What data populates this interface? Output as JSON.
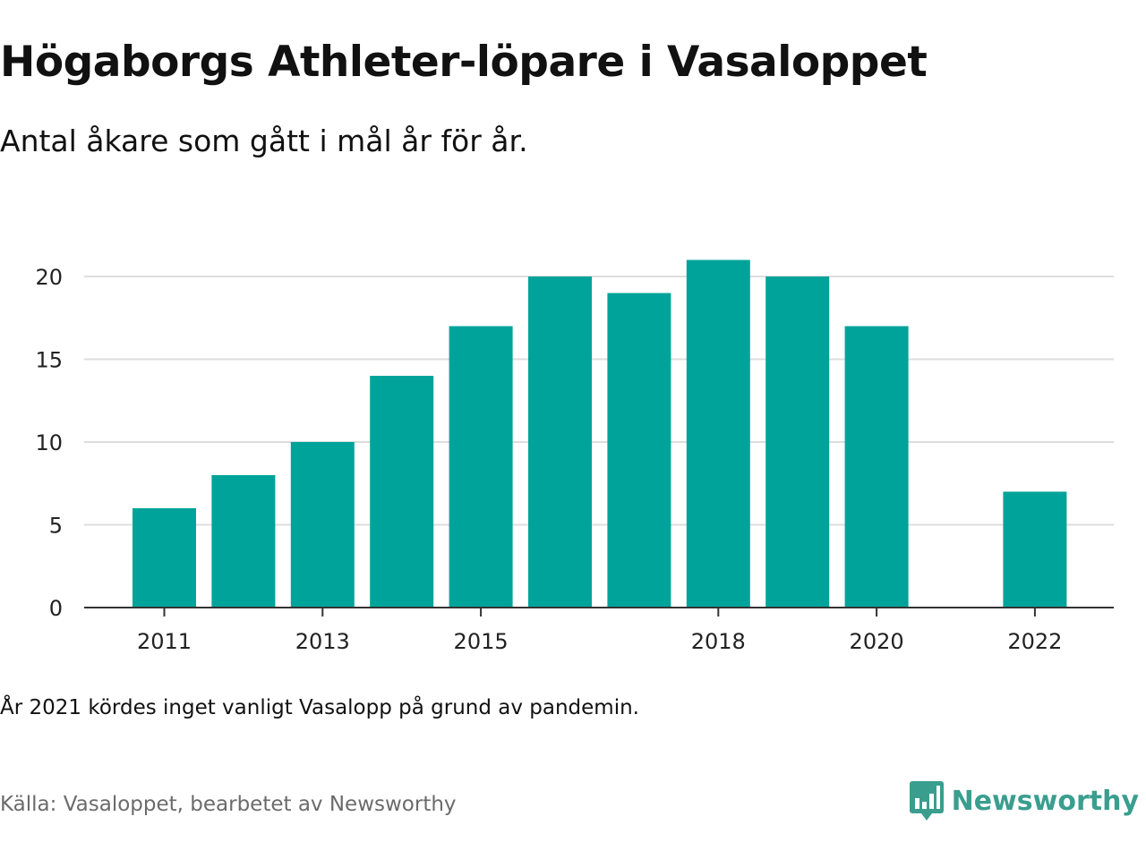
{
  "title": "Högaborgs Athleter-löpare i Vasaloppet",
  "subtitle": "Antal åkare som gått i mål år för år.",
  "note": "År 2021 kördes inget vanligt Vasalopp på grund av pandemin.",
  "source": "Källa: Vasaloppet, bearbetet av Newsworthy",
  "brand": {
    "name": "Newsworthy",
    "icon": "newsworthy-logo-icon",
    "color": "#3a9e8f"
  },
  "colors": {
    "bar": "#00a39a",
    "grid": "#dddddd",
    "axis": "#333333"
  },
  "chart_data": {
    "type": "bar",
    "x": [
      2011,
      2012,
      2013,
      2014,
      2015,
      2016,
      2017,
      2018,
      2019,
      2020,
      2021,
      2022
    ],
    "values": [
      6,
      8,
      10,
      14,
      17,
      20,
      19,
      21,
      20,
      17,
      null,
      7
    ],
    "x_tick_labels": [
      "2011",
      "2013",
      "2015",
      "2018",
      "2020",
      "2022"
    ],
    "y_ticks": [
      0,
      5,
      10,
      15,
      20
    ],
    "ylim": [
      0,
      21
    ],
    "grid": true,
    "legend": "none",
    "xlabel": "",
    "ylabel": ""
  }
}
